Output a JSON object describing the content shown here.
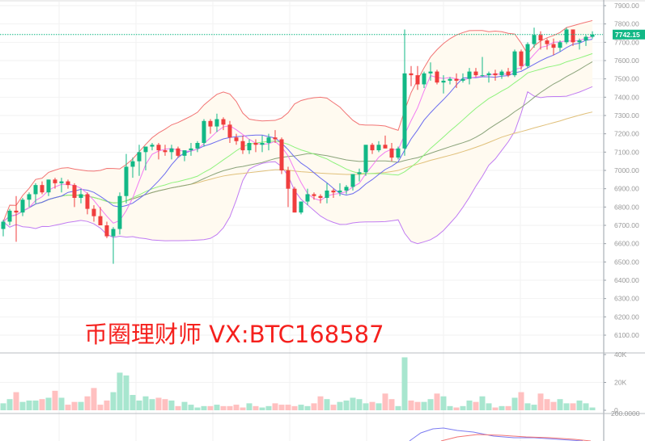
{
  "chart_data": {
    "type": "candlestick",
    "title": "",
    "symbol_watermark": "币圈理财师 VX:BTC168587",
    "price_axis": {
      "ticks": [
        7900,
        7800,
        7700,
        7600,
        7500,
        7400,
        7300,
        7200,
        7100,
        7000,
        6900,
        6800,
        6700,
        6600,
        6500,
        6400,
        6300,
        6200,
        6100
      ],
      "tick_labels": [
        "7900.00",
        "7800.00",
        "7700.00",
        "7600.00",
        "7500.00",
        "7400.00",
        "7300.00",
        "7200.00",
        "7100.00",
        "7000.00",
        "6900.00",
        "6800.00",
        "6700.00",
        "6600.00",
        "6500.00",
        "6400.00",
        "6300.00",
        "6200.00",
        "6100.00"
      ],
      "range": [
        6050,
        7925
      ],
      "position": "right"
    },
    "current_price": 7742.15,
    "current_price_label": "7742.15",
    "volume_axis": {
      "ticks": [
        40000,
        20000,
        0
      ],
      "tick_labels": [
        "40K",
        "20K",
        "0"
      ]
    },
    "lower_panel_axis_label": "200.0000",
    "colors": {
      "up": "#12b886",
      "down": "#f03e3e",
      "up_volume": "#a8e6cf",
      "down_volume": "#ffc0c0",
      "boll_upper": "#f27474",
      "boll_lower": "#c17cf2",
      "boll_fill": "#fffaf0",
      "ma5": "#f27cf2",
      "ma10": "#6b6bef",
      "ma20": "#8ef27c",
      "ma30": "#8aa37a",
      "ma60": "#e0c07a",
      "macd_dif": "#7c7cf2",
      "macd_dea": "#f27474",
      "current_price_line": "#12b886",
      "grid": "#f2f2f2",
      "axis": "#9aa0a8"
    },
    "candles": [
      [
        6680,
        6730,
        6640,
        6720
      ],
      [
        6720,
        6790,
        6700,
        6780
      ],
      [
        6780,
        6860,
        6610,
        6770
      ],
      [
        6770,
        6850,
        6750,
        6840
      ],
      [
        6840,
        6880,
        6800,
        6870
      ],
      [
        6870,
        6930,
        6820,
        6920
      ],
      [
        6920,
        6940,
        6870,
        6880
      ],
      [
        6880,
        6950,
        6860,
        6950
      ],
      [
        6950,
        6960,
        6900,
        6930
      ],
      [
        6930,
        6960,
        6880,
        6940
      ],
      [
        6940,
        6950,
        6900,
        6920
      ],
      [
        6920,
        6930,
        6800,
        6850
      ],
      [
        6850,
        6900,
        6820,
        6870
      ],
      [
        6870,
        6880,
        6760,
        6790
      ],
      [
        6790,
        6810,
        6720,
        6750
      ],
      [
        6750,
        6800,
        6700,
        6700
      ],
      [
        6700,
        6720,
        6630,
        6640
      ],
      [
        6640,
        6690,
        6490,
        6680
      ],
      [
        6680,
        6880,
        6650,
        6860
      ],
      [
        6860,
        7090,
        6820,
        7020
      ],
      [
        7020,
        7070,
        6960,
        7050
      ],
      [
        7050,
        7140,
        6970,
        7100
      ],
      [
        7100,
        7130,
        7000,
        7130
      ],
      [
        7130,
        7150,
        7110,
        7140
      ],
      [
        7140,
        7150,
        7060,
        7110
      ],
      [
        7110,
        7140,
        7080,
        7100
      ],
      [
        7100,
        7140,
        7060,
        7120
      ],
      [
        7120,
        7130,
        7070,
        7080
      ],
      [
        7080,
        7100,
        7050,
        7110
      ],
      [
        7110,
        7150,
        7080,
        7120
      ],
      [
        7120,
        7160,
        7100,
        7150
      ],
      [
        7150,
        7280,
        7130,
        7270
      ],
      [
        7270,
        7280,
        7200,
        7240
      ],
      [
        7240,
        7310,
        7210,
        7280
      ],
      [
        7280,
        7290,
        7220,
        7250
      ],
      [
        7250,
        7270,
        7150,
        7180
      ],
      [
        7180,
        7200,
        7140,
        7160
      ],
      [
        7160,
        7190,
        7090,
        7110
      ],
      [
        7110,
        7170,
        7090,
        7150
      ],
      [
        7150,
        7170,
        7100,
        7140
      ],
      [
        7140,
        7190,
        7100,
        7150
      ],
      [
        7150,
        7200,
        7110,
        7180
      ],
      [
        7180,
        7220,
        7150,
        7170
      ],
      [
        7170,
        7180,
        6980,
        7000
      ],
      [
        7000,
        7020,
        6800,
        6900
      ],
      [
        6900,
        6910,
        6770,
        6770
      ],
      [
        6770,
        6830,
        6760,
        6830
      ],
      [
        6830,
        6900,
        6810,
        6870
      ],
      [
        6870,
        6880,
        6840,
        6860
      ],
      [
        6860,
        6870,
        6820,
        6850
      ],
      [
        6850,
        6930,
        6820,
        6890
      ],
      [
        6890,
        6900,
        6850,
        6880
      ],
      [
        6880,
        6930,
        6860,
        6890
      ],
      [
        6890,
        6920,
        6870,
        6910
      ],
      [
        6910,
        6980,
        6890,
        6980
      ],
      [
        6980,
        7010,
        6940,
        6990
      ],
      [
        6990,
        7110,
        6970,
        7140
      ],
      [
        7140,
        7150,
        7090,
        7110
      ],
      [
        7110,
        7160,
        7100,
        7140
      ],
      [
        7140,
        7190,
        7120,
        7120
      ],
      [
        7120,
        7150,
        7050,
        7070
      ],
      [
        7070,
        7130,
        7060,
        7120
      ],
      [
        7120,
        7770,
        7080,
        7530
      ],
      [
        7530,
        7570,
        7460,
        7520
      ],
      [
        7520,
        7570,
        7440,
        7470
      ],
      [
        7470,
        7540,
        7450,
        7530
      ],
      [
        7530,
        7590,
        7490,
        7540
      ],
      [
        7540,
        7550,
        7470,
        7480
      ],
      [
        7480,
        7520,
        7420,
        7490
      ],
      [
        7490,
        7510,
        7470,
        7500
      ],
      [
        7500,
        7530,
        7450,
        7490
      ],
      [
        7490,
        7530,
        7480,
        7500
      ],
      [
        7500,
        7560,
        7470,
        7540
      ],
      [
        7540,
        7560,
        7510,
        7520
      ],
      [
        7520,
        7620,
        7510,
        7520
      ],
      [
        7520,
        7540,
        7480,
        7530
      ],
      [
        7530,
        7550,
        7490,
        7520
      ],
      [
        7520,
        7550,
        7500,
        7540
      ],
      [
        7540,
        7560,
        7510,
        7520
      ],
      [
        7520,
        7660,
        7510,
        7650
      ],
      [
        7650,
        7660,
        7550,
        7570
      ],
      [
        7570,
        7700,
        7560,
        7690
      ],
      [
        7690,
        7780,
        7670,
        7740
      ],
      [
        7740,
        7760,
        7660,
        7710
      ],
      [
        7710,
        7720,
        7660,
        7690
      ],
      [
        7690,
        7720,
        7630,
        7670
      ],
      [
        7670,
        7710,
        7650,
        7700
      ],
      [
        7700,
        7780,
        7690,
        7770
      ],
      [
        7770,
        7770,
        7680,
        7700
      ],
      [
        7700,
        7720,
        7660,
        7710
      ],
      [
        7710,
        7740,
        7680,
        7730
      ],
      [
        7730,
        7760,
        7720,
        7742
      ]
    ],
    "volumes_k": [
      5,
      8,
      13,
      6,
      7,
      7,
      8,
      9,
      14,
      9,
      4,
      6,
      6,
      10,
      16,
      4,
      7,
      13,
      27,
      25,
      11,
      7,
      10,
      8,
      9,
      8,
      7,
      3,
      6,
      4,
      2,
      3,
      3,
      4,
      3,
      3,
      4,
      2,
      5,
      3,
      2,
      3,
      5,
      4,
      4,
      3,
      4,
      3,
      5,
      10,
      8,
      4,
      6,
      7,
      9,
      8,
      5,
      6,
      5,
      12,
      8,
      3,
      38,
      7,
      6,
      6,
      8,
      12,
      10,
      3,
      2,
      3,
      7,
      6,
      10,
      5,
      2,
      3,
      3,
      9,
      13,
      5,
      4,
      12,
      8,
      6,
      8,
      5,
      5,
      7,
      5,
      2
    ],
    "macd_visible_partial": true
  }
}
